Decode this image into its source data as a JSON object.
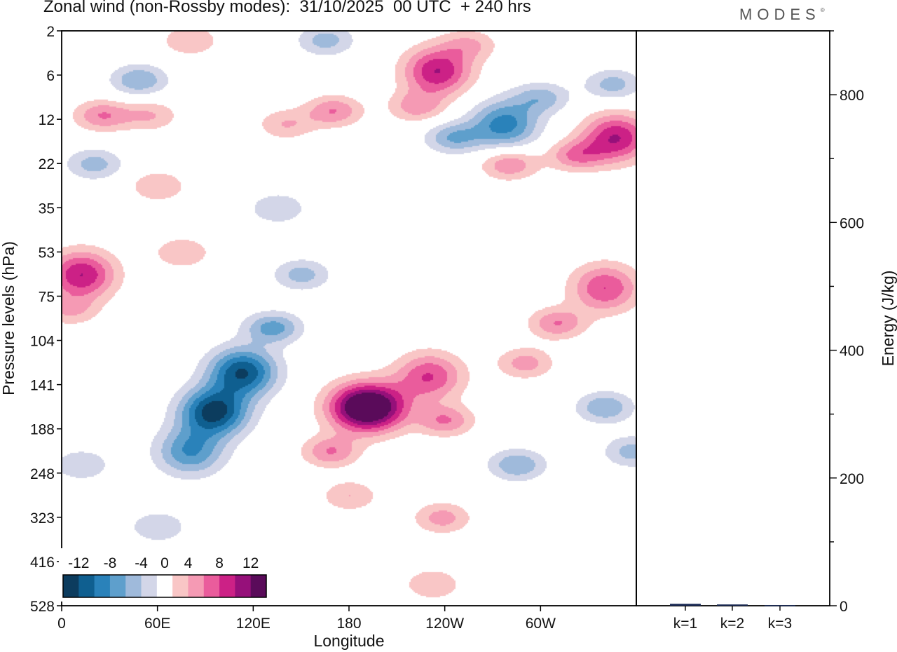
{
  "title": "Zonal wind (non-Rossby modes):  31/10/2025  00 UTC  + 240 hrs",
  "brand": "MODES",
  "brand_mark": "®",
  "chart_data": [
    {
      "type": "heatmap",
      "title": "Zonal wind (non-Rossby modes):  31/10/2025  00 UTC  + 240 hrs",
      "xlabel": "Longitude",
      "ylabel": "Pressure levels (hPa)",
      "x_ticks": [
        "0",
        "60E",
        "120E",
        "180",
        "120W",
        "60W"
      ],
      "x_tick_deg": [
        0,
        60,
        120,
        180,
        240,
        300
      ],
      "xlim_deg": [
        0,
        360
      ],
      "y_levels": [
        "2",
        "6",
        "12",
        "22",
        "35",
        "53",
        "75",
        "104",
        "141",
        "188",
        "248",
        "323",
        "416",
        "528"
      ],
      "colorbar": {
        "labels": [
          "-12",
          "-8",
          "-4",
          "0",
          "4",
          "8",
          "12"
        ],
        "label_values": [
          -12,
          -8,
          -4,
          0,
          4,
          8,
          12
        ],
        "bounds": [
          -14,
          -12,
          -10,
          -8,
          -6,
          -4,
          -2,
          2,
          4,
          6,
          8,
          10,
          12,
          14
        ],
        "colors": [
          "#0c3c5e",
          "#0f5f90",
          "#2a82ba",
          "#5e9fcc",
          "#9fbadb",
          "#d3d6e8",
          "#ffffff",
          "#f9c6c6",
          "#f59ab4",
          "#ea5c9c",
          "#cc2186",
          "#96107a",
          "#5a0b5a"
        ]
      },
      "anomalies": [
        {
          "lon": 95,
          "level": 8.6,
          "value": -13
        },
        {
          "lon": 113,
          "level": 7.7,
          "value": -12
        },
        {
          "lon": 80,
          "level": 9.5,
          "value": -8
        },
        {
          "lon": 132,
          "level": 6.7,
          "value": -7
        },
        {
          "lon": 150,
          "level": 5.5,
          "value": -5
        },
        {
          "lon": 60,
          "level": 11.2,
          "value": -4
        },
        {
          "lon": 20,
          "level": 3.0,
          "value": -5
        },
        {
          "lon": 12,
          "level": 9.8,
          "value": -4
        },
        {
          "lon": 48,
          "level": 1.1,
          "value": -6
        },
        {
          "lon": 277,
          "level": 2.1,
          "value": -9
        },
        {
          "lon": 245,
          "level": 2.4,
          "value": -6
        },
        {
          "lon": 300,
          "level": 1.5,
          "value": -5
        },
        {
          "lon": 345,
          "level": 1.2,
          "value": -5
        },
        {
          "lon": 165,
          "level": 0.2,
          "value": -5
        },
        {
          "lon": 285,
          "level": 9.8,
          "value": -6
        },
        {
          "lon": 340,
          "level": 8.5,
          "value": -6
        },
        {
          "lon": 357,
          "level": 9.5,
          "value": -5
        },
        {
          "lon": 135,
          "level": 4.0,
          "value": -4
        },
        {
          "lon": 185,
          "level": 8.5,
          "value": 10
        },
        {
          "lon": 198,
          "level": 8.5,
          "value": 9
        },
        {
          "lon": 168,
          "level": 9.5,
          "value": 6
        },
        {
          "lon": 180,
          "level": 10.5,
          "value": 4
        },
        {
          "lon": 230,
          "level": 7.8,
          "value": 8
        },
        {
          "lon": 240,
          "level": 8.8,
          "value": 6
        },
        {
          "lon": 238,
          "level": 11.0,
          "value": 5
        },
        {
          "lon": 232,
          "level": 12.5,
          "value": 4
        },
        {
          "lon": 235,
          "level": 0.9,
          "value": 10
        },
        {
          "lon": 222,
          "level": 1.7,
          "value": 5
        },
        {
          "lon": 347,
          "level": 2.4,
          "value": 10
        },
        {
          "lon": 322,
          "level": 2.8,
          "value": 6
        },
        {
          "lon": 280,
          "level": 3.0,
          "value": 6
        },
        {
          "lon": 12,
          "level": 5.5,
          "value": 10
        },
        {
          "lon": 5,
          "level": 6.3,
          "value": 4
        },
        {
          "lon": 25,
          "level": 1.9,
          "value": 6
        },
        {
          "lon": 55,
          "level": 1.9,
          "value": 4
        },
        {
          "lon": 170,
          "level": 1.8,
          "value": 6
        },
        {
          "lon": 140,
          "level": 2.1,
          "value": 4
        },
        {
          "lon": 340,
          "level": 5.8,
          "value": 8
        },
        {
          "lon": 310,
          "level": 6.6,
          "value": 6
        },
        {
          "lon": 290,
          "level": 7.5,
          "value": 5
        },
        {
          "lon": 60,
          "level": 3.5,
          "value": 4
        },
        {
          "lon": 75,
          "level": 5.0,
          "value": 4
        },
        {
          "lon": 80,
          "level": 0.2,
          "value": 4
        },
        {
          "lon": 255,
          "level": 0.3,
          "value": 4
        }
      ]
    },
    {
      "type": "bar",
      "ylabel": "Energy (J/kg)",
      "categories": [
        "k=1",
        "k=2",
        "k=3"
      ],
      "values": [
        3,
        2,
        1
      ],
      "ylim": [
        0,
        900
      ],
      "y_ticks": [
        "0",
        "200",
        "400",
        "600",
        "800"
      ],
      "y_tick_values": [
        0,
        200,
        400,
        600,
        800
      ],
      "bar_color": "#1a2a55"
    }
  ]
}
